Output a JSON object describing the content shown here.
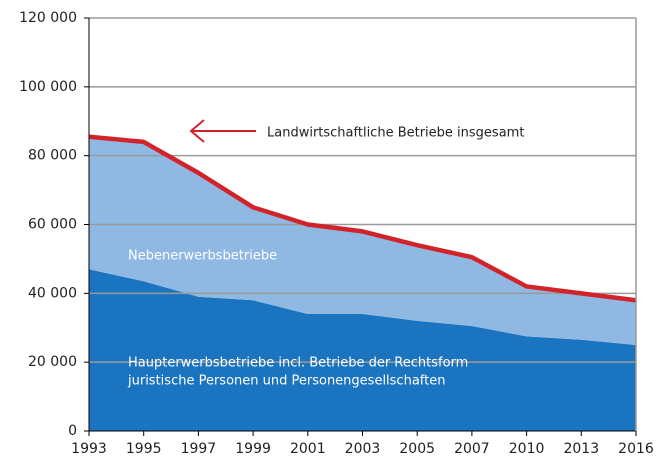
{
  "chart_data": {
    "type": "stacked_area",
    "categories": [
      "1993",
      "1995",
      "1997",
      "1999",
      "2001",
      "2003",
      "2005",
      "2007",
      "2010",
      "2013",
      "2016"
    ],
    "series": [
      {
        "label_lines": [
          "Haupterwerbsbetriebe incl. Betriebe der Rechtsform",
          "juristische Personen und Personengesellschaften"
        ],
        "color": "#1b74c0",
        "values": [
          47000,
          43500,
          39000,
          38000,
          34000,
          34000,
          32000,
          30500,
          27500,
          26500,
          25000
        ]
      },
      {
        "name": "Nebenerwerbsbetriebe",
        "color": "#8fb9e2",
        "values": [
          38000,
          40000,
          35500,
          26500,
          25500,
          23500,
          21500,
          19500,
          14000,
          13000,
          12500
        ]
      }
    ],
    "total": {
      "name": "Landwirtschaftliche Betriebe insgesamt",
      "color": "#d2232a",
      "values": [
        85500,
        84000,
        75000,
        65000,
        60000,
        58000,
        54000,
        50500,
        42000,
        40000,
        38000
      ]
    },
    "ylim": [
      0,
      120000
    ],
    "yticks": [
      0,
      {
        "value": 20000,
        "label": "20 000"
      },
      {
        "value": 40000,
        "label": "40 000"
      },
      {
        "value": 60000,
        "label": "60 000"
      },
      {
        "value": 80000,
        "label": "80 000"
      },
      {
        "value": 100000,
        "label": "100 000"
      },
      {
        "value": 120000,
        "label": "120 000"
      }
    ],
    "grid": true
  }
}
